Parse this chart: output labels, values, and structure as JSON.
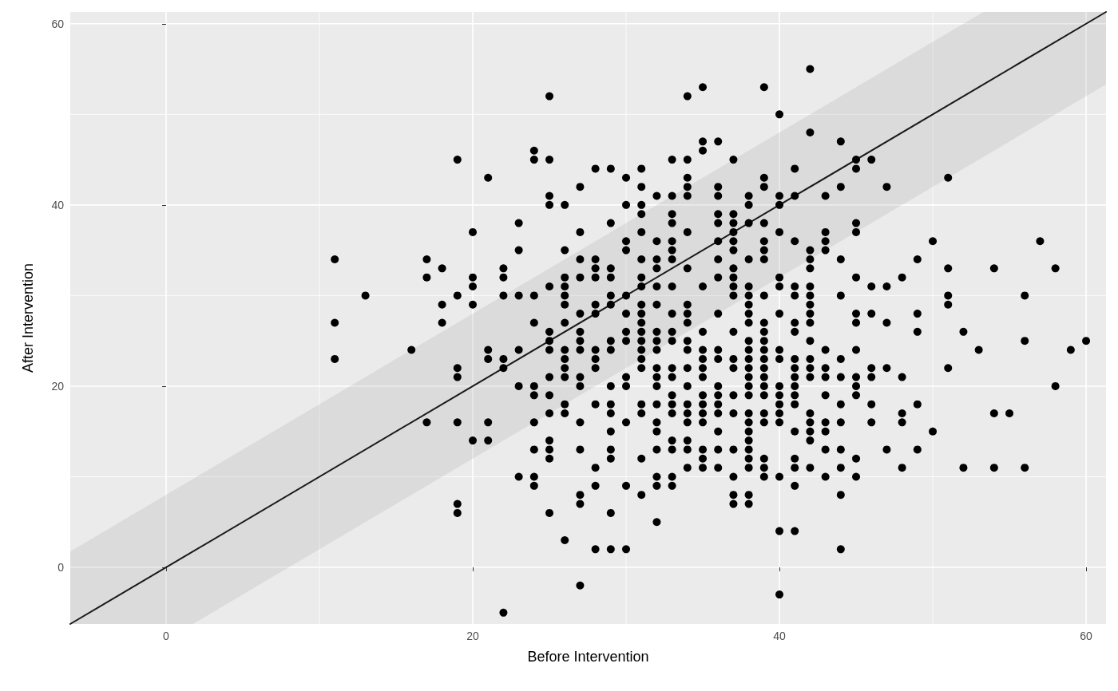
{
  "chart_data": {
    "type": "scatter",
    "xlabel": "Before Intervention",
    "ylabel": "After Intervention",
    "xlim": [
      -6.25,
      61.3
    ],
    "ylim": [
      -6.25,
      61.3
    ],
    "xticks": [
      0,
      20,
      40,
      60
    ],
    "yticks": [
      0,
      20,
      40,
      60
    ],
    "grid": true,
    "marker": "circle",
    "series": [
      {
        "color": "#000000",
        "x": [
          11,
          11,
          11,
          13,
          16,
          17,
          17,
          17,
          18,
          18,
          18,
          19,
          19,
          19,
          19,
          19,
          19,
          19,
          20,
          20,
          20,
          20,
          20,
          21,
          21,
          21,
          21,
          21,
          22,
          22,
          22,
          22,
          22,
          22,
          23,
          23,
          23,
          23,
          23,
          23,
          24,
          24,
          24,
          24,
          24,
          24,
          24,
          24,
          24,
          24,
          25,
          25,
          25,
          25,
          25,
          25,
          25,
          25,
          25,
          25,
          25,
          25,
          25,
          25,
          25,
          26,
          26,
          26,
          26,
          26,
          26,
          26,
          26,
          26,
          26,
          26,
          26,
          26,
          26,
          27,
          27,
          27,
          27,
          27,
          27,
          27,
          27,
          27,
          27,
          27,
          27,
          27,
          27,
          27,
          28,
          28,
          28,
          28,
          28,
          28,
          28,
          28,
          28,
          28,
          28,
          28,
          28,
          29,
          29,
          29,
          29,
          29,
          29,
          29,
          29,
          29,
          29,
          29,
          29,
          29,
          29,
          29,
          29,
          30,
          30,
          30,
          30,
          30,
          30,
          30,
          30,
          30,
          30,
          30,
          30,
          30,
          31,
          31,
          31,
          31,
          31,
          31,
          31,
          31,
          31,
          31,
          31,
          31,
          31,
          31,
          31,
          31,
          31,
          31,
          31,
          31,
          32,
          32,
          32,
          32,
          32,
          32,
          32,
          32,
          32,
          32,
          32,
          32,
          32,
          32,
          32,
          32,
          32,
          32,
          32,
          33,
          33,
          33,
          33,
          33,
          33,
          33,
          33,
          33,
          33,
          33,
          33,
          33,
          33,
          33,
          33,
          33,
          33,
          33,
          33,
          34,
          34,
          34,
          34,
          34,
          34,
          34,
          34,
          34,
          34,
          34,
          34,
          34,
          34,
          34,
          34,
          34,
          34,
          34,
          34,
          35,
          35,
          35,
          35,
          35,
          35,
          35,
          35,
          35,
          35,
          35,
          35,
          35,
          35,
          35,
          35,
          36,
          36,
          36,
          36,
          36,
          36,
          36,
          36,
          36,
          36,
          36,
          36,
          36,
          36,
          36,
          36,
          36,
          36,
          37,
          37,
          37,
          37,
          37,
          37,
          37,
          37,
          37,
          37,
          37,
          37,
          37,
          37,
          37,
          37,
          37,
          37,
          37,
          38,
          38,
          38,
          38,
          38,
          38,
          38,
          38,
          38,
          38,
          38,
          38,
          38,
          38,
          38,
          38,
          38,
          38,
          38,
          38,
          38,
          38,
          38,
          38,
          38,
          39,
          39,
          39,
          39,
          39,
          39,
          39,
          39,
          39,
          39,
          39,
          39,
          39,
          39,
          39,
          39,
          39,
          39,
          39,
          39,
          39,
          39,
          40,
          40,
          40,
          40,
          40,
          40,
          40,
          40,
          40,
          40,
          40,
          40,
          40,
          40,
          40,
          40,
          40,
          41,
          41,
          41,
          41,
          41,
          41,
          41,
          41,
          41,
          41,
          41,
          41,
          41,
          41,
          41,
          41,
          41,
          41,
          42,
          42,
          42,
          42,
          42,
          42,
          42,
          42,
          42,
          42,
          42,
          42,
          42,
          42,
          42,
          42,
          42,
          42,
          42,
          43,
          43,
          43,
          43,
          43,
          43,
          43,
          43,
          43,
          43,
          43,
          43,
          44,
          44,
          44,
          44,
          44,
          44,
          44,
          44,
          44,
          44,
          44,
          44,
          45,
          45,
          45,
          45,
          45,
          45,
          45,
          45,
          45,
          45,
          45,
          45,
          45,
          46,
          46,
          46,
          46,
          46,
          46,
          46,
          47,
          47,
          47,
          47,
          47,
          48,
          48,
          48,
          48,
          48,
          49,
          49,
          49,
          49,
          49,
          50,
          50,
          51,
          51,
          51,
          51,
          51,
          52,
          52,
          53,
          54,
          54,
          54,
          55,
          56,
          56,
          56,
          57,
          58,
          58,
          59,
          60
        ],
        "values": [
          34,
          27,
          23,
          30,
          24,
          34,
          32,
          16,
          33,
          29,
          27,
          45,
          30,
          22,
          21,
          16,
          7,
          6,
          37,
          32,
          31,
          29,
          14,
          43,
          24,
          23,
          16,
          14,
          33,
          32,
          30,
          23,
          22,
          -5,
          38,
          35,
          30,
          24,
          20,
          10,
          46,
          45,
          30,
          27,
          20,
          19,
          16,
          13,
          10,
          9,
          52,
          45,
          41,
          40,
          31,
          26,
          25,
          24,
          21,
          19,
          17,
          14,
          13,
          12,
          6,
          40,
          35,
          32,
          31,
          30,
          29,
          27,
          24,
          23,
          22,
          21,
          18,
          17,
          3,
          42,
          37,
          34,
          32,
          28,
          26,
          25,
          24,
          21,
          20,
          16,
          13,
          8,
          7,
          -2,
          44,
          34,
          33,
          32,
          29,
          28,
          24,
          23,
          22,
          18,
          11,
          9,
          2,
          44,
          38,
          33,
          32,
          30,
          29,
          25,
          24,
          20,
          18,
          17,
          15,
          13,
          12,
          6,
          2,
          43,
          40,
          36,
          35,
          30,
          28,
          26,
          25,
          21,
          20,
          16,
          9,
          2,
          44,
          42,
          40,
          39,
          37,
          34,
          32,
          31,
          29,
          28,
          27,
          26,
          25,
          24,
          23,
          22,
          18,
          17,
          12,
          8,
          41,
          36,
          34,
          33,
          31,
          29,
          26,
          25,
          24,
          22,
          21,
          20,
          18,
          16,
          15,
          13,
          10,
          9,
          5,
          45,
          41,
          39,
          38,
          36,
          35,
          34,
          31,
          28,
          26,
          25,
          22,
          21,
          19,
          18,
          17,
          14,
          13,
          10,
          9,
          52,
          45,
          43,
          42,
          41,
          37,
          33,
          29,
          28,
          27,
          25,
          24,
          22,
          20,
          18,
          17,
          16,
          14,
          13,
          11,
          53,
          47,
          46,
          31,
          26,
          24,
          23,
          22,
          21,
          19,
          18,
          17,
          16,
          13,
          12,
          11,
          47,
          42,
          41,
          39,
          38,
          36,
          34,
          32,
          28,
          24,
          23,
          20,
          19,
          18,
          17,
          15,
          13,
          11,
          45,
          39,
          38,
          37,
          36,
          35,
          33,
          32,
          31,
          30,
          26,
          23,
          22,
          19,
          17,
          13,
          10,
          8,
          7,
          41,
          40,
          38,
          34,
          31,
          30,
          29,
          28,
          27,
          25,
          24,
          23,
          22,
          21,
          20,
          19,
          17,
          16,
          15,
          14,
          13,
          12,
          11,
          8,
          7,
          53,
          43,
          42,
          38,
          36,
          35,
          34,
          30,
          27,
          26,
          25,
          24,
          23,
          22,
          21,
          20,
          19,
          17,
          16,
          12,
          11,
          10,
          50,
          41,
          40,
          37,
          32,
          31,
          28,
          24,
          23,
          20,
          19,
          18,
          17,
          16,
          10,
          4,
          -3,
          44,
          41,
          36,
          31,
          30,
          27,
          26,
          23,
          22,
          21,
          20,
          19,
          18,
          15,
          12,
          11,
          9,
          4,
          55,
          48,
          35,
          34,
          33,
          31,
          30,
          29,
          28,
          27,
          25,
          23,
          22,
          21,
          17,
          16,
          15,
          14,
          11,
          41,
          37,
          36,
          35,
          24,
          22,
          21,
          19,
          16,
          15,
          13,
          10,
          47,
          42,
          34,
          30,
          23,
          21,
          18,
          16,
          13,
          11,
          8,
          2,
          45,
          44,
          38,
          37,
          32,
          28,
          27,
          24,
          21,
          20,
          19,
          12,
          10,
          45,
          31,
          28,
          22,
          21,
          18,
          16,
          42,
          31,
          27,
          22,
          13,
          32,
          21,
          17,
          16,
          11,
          34,
          28,
          26,
          18,
          13,
          36,
          15,
          43,
          33,
          30,
          29,
          22,
          26,
          11,
          24,
          33,
          17,
          11,
          17,
          30,
          25,
          11,
          36,
          33,
          20,
          24,
          25
        ]
      },
      {
        "type": "line",
        "color": "#1a1a1a",
        "marker": "none",
        "x": [
          -6.25,
          1.75,
          53.3,
          61.3
        ],
        "values": [
          -6.25,
          1.75,
          53.3,
          61.3
        ],
        "lower": [
          -6.25,
          -6.25,
          45.3,
          53.3
        ],
        "upper": [
          1.75,
          9.75,
          61.3,
          61.3
        ]
      }
    ]
  }
}
